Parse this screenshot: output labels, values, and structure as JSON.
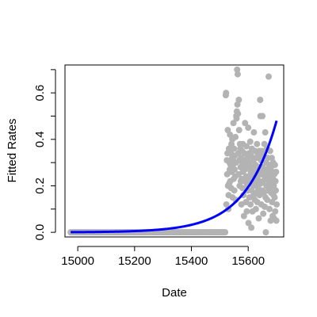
{
  "chart_data": {
    "type": "scatter",
    "title": "",
    "xlabel": "Date",
    "ylabel": "Fitted Rates",
    "xlim": [
      14955,
      15725
    ],
    "ylim": [
      -0.02,
      0.72
    ],
    "x_ticks": [
      15000,
      15200,
      15400,
      15600
    ],
    "x_tick_labels": [
      "15000",
      "15200",
      "15400",
      "15600"
    ],
    "y_ticks": [
      0.0,
      0.2,
      0.4,
      0.6
    ],
    "y_tick_labels": [
      "0.0",
      "0.2",
      "0.4",
      "0.6"
    ],
    "y_minor_ticks": [
      0.1,
      0.3,
      0.5,
      0.7
    ],
    "grid": false,
    "legend": "none",
    "zero_points": {
      "x_start": 14975,
      "x_end": 15520,
      "step": 4,
      "y": 0
    },
    "scatter_points": [
      [
        15521,
        0.59
      ],
      [
        15522,
        0.6
      ],
      [
        15523,
        0.12
      ],
      [
        15525,
        0.31
      ],
      [
        15526,
        0.25
      ],
      [
        15527,
        0.34
      ],
      [
        15528,
        0.44
      ],
      [
        15529,
        0.2
      ],
      [
        15530,
        0.1
      ],
      [
        15531,
        0.16
      ],
      [
        15532,
        0.36
      ],
      [
        15533,
        0.21
      ],
      [
        15534,
        0.3
      ],
      [
        15535,
        0.27
      ],
      [
        15536,
        0.42
      ],
      [
        15537,
        0.22
      ],
      [
        15538,
        0.29
      ],
      [
        15539,
        0.34
      ],
      [
        15540,
        0.19
      ],
      [
        15541,
        0.38
      ],
      [
        15542,
        0.26
      ],
      [
        15543,
        0.32
      ],
      [
        15544,
        0.4
      ],
      [
        15545,
        0.15
      ],
      [
        15546,
        0.28
      ],
      [
        15547,
        0.31
      ],
      [
        15548,
        0.47
      ],
      [
        15549,
        0.23
      ],
      [
        15550,
        0.36
      ],
      [
        15551,
        0.18
      ],
      [
        15552,
        0.27
      ],
      [
        15553,
        0.33
      ],
      [
        15554,
        0.24
      ],
      [
        15555,
        0.41
      ],
      [
        15556,
        0.14
      ],
      [
        15557,
        0.3
      ],
      [
        15558,
        0.5
      ],
      [
        15559,
        0.49
      ],
      [
        15560,
        0.52
      ],
      [
        15561,
        0.7
      ],
      [
        15562,
        0.55
      ],
      [
        15563,
        0.68
      ],
      [
        15564,
        0.51
      ],
      [
        15565,
        0.34
      ],
      [
        15566,
        0.25
      ],
      [
        15567,
        0.57
      ],
      [
        15568,
        0.44
      ],
      [
        15569,
        0.31
      ],
      [
        15570,
        0.2
      ],
      [
        15571,
        0.38
      ],
      [
        15572,
        0.36
      ],
      [
        15573,
        0.28
      ],
      [
        15574,
        0.22
      ],
      [
        15575,
        0.32
      ],
      [
        15576,
        0.12
      ],
      [
        15577,
        0.23
      ],
      [
        15578,
        0.35
      ],
      [
        15579,
        0.29
      ],
      [
        15580,
        0.19
      ],
      [
        15581,
        0.38
      ],
      [
        15582,
        0.26
      ],
      [
        15583,
        0.16
      ],
      [
        15584,
        0.31
      ],
      [
        15585,
        0.07
      ],
      [
        15586,
        0.22
      ],
      [
        15587,
        0.34
      ],
      [
        15588,
        0.27
      ],
      [
        15589,
        0.47
      ],
      [
        15590,
        0.19
      ],
      [
        15591,
        0.3
      ],
      [
        15592,
        0.13
      ],
      [
        15593,
        0.24
      ],
      [
        15594,
        0.37
      ],
      [
        15595,
        0.09
      ],
      [
        15596,
        0.21
      ],
      [
        15597,
        0.32
      ],
      [
        15598,
        0.18
      ],
      [
        15599,
        0.28
      ],
      [
        15600,
        0.45
      ],
      [
        15601,
        0.04
      ],
      [
        15602,
        0.24
      ],
      [
        15603,
        0.34
      ],
      [
        15604,
        0.15
      ],
      [
        15605,
        0.3
      ],
      [
        15606,
        0.22
      ],
      [
        15607,
        0.39
      ],
      [
        15608,
        0.12
      ],
      [
        15609,
        0.26
      ],
      [
        15610,
        0.33
      ],
      [
        15611,
        0.02
      ],
      [
        15612,
        0.18
      ],
      [
        15613,
        0.36
      ],
      [
        15614,
        0.25
      ],
      [
        15615,
        0.09
      ],
      [
        15616,
        0.28
      ],
      [
        15617,
        0.2
      ],
      [
        15618,
        0.31
      ],
      [
        15619,
        0.16
      ],
      [
        15620,
        0.43
      ],
      [
        15621,
        0.23
      ],
      [
        15622,
        0.27
      ],
      [
        15623,
        0.14
      ],
      [
        15624,
        0.35
      ],
      [
        15625,
        0.21
      ],
      [
        15626,
        0.29
      ],
      [
        15627,
        0.1
      ],
      [
        15628,
        0.32
      ],
      [
        15629,
        0.17
      ],
      [
        15630,
        0.26
      ],
      [
        15631,
        0.38
      ],
      [
        15632,
        0.13
      ],
      [
        15633,
        0.24
      ],
      [
        15634,
        0.33
      ],
      [
        15635,
        0.19
      ],
      [
        15636,
        0.28
      ],
      [
        15637,
        0.06
      ],
      [
        15638,
        0.22
      ],
      [
        15639,
        0.35
      ],
      [
        15640,
        0.16
      ],
      [
        15641,
        0.27
      ],
      [
        15642,
        0.57
      ],
      [
        15643,
        0.5
      ],
      [
        15644,
        0.21
      ],
      [
        15645,
        0.31
      ],
      [
        15646,
        0.12
      ],
      [
        15647,
        0.25
      ],
      [
        15648,
        0.35
      ],
      [
        15649,
        0.18
      ],
      [
        15650,
        0.5
      ],
      [
        15651,
        0.28
      ],
      [
        15652,
        0.22
      ],
      [
        15653,
        0.08
      ],
      [
        15654,
        0.33
      ],
      [
        15655,
        0.17
      ],
      [
        15656,
        0.26
      ],
      [
        15657,
        0.38
      ],
      [
        15658,
        0.11
      ],
      [
        15659,
        0.24
      ],
      [
        15660,
        0.43
      ],
      [
        15661,
        0.15
      ],
      [
        15662,
        0.0
      ],
      [
        15663,
        0.3
      ],
      [
        15664,
        0.2
      ],
      [
        15665,
        0.27
      ],
      [
        15666,
        0.36
      ],
      [
        15667,
        0.14
      ],
      [
        15668,
        0.23
      ],
      [
        15669,
        0.32
      ],
      [
        15670,
        0.18
      ],
      [
        15671,
        0.26
      ],
      [
        15672,
        0.67
      ],
      [
        15673,
        0.22
      ],
      [
        15674,
        0.29
      ],
      [
        15675,
        0.1
      ],
      [
        15676,
        0.19
      ],
      [
        15677,
        0.35
      ],
      [
        15678,
        0.24
      ],
      [
        15679,
        0.05
      ],
      [
        15680,
        0.28
      ],
      [
        15681,
        0.17
      ],
      [
        15682,
        0.21
      ],
      [
        15683,
        0.32
      ],
      [
        15684,
        0.13
      ],
      [
        15685,
        0.26
      ],
      [
        15686,
        0.07
      ],
      [
        15687,
        0.23
      ],
      [
        15688,
        0.3
      ],
      [
        15689,
        0.16
      ],
      [
        15690,
        0.2
      ],
      [
        15691,
        0.06
      ],
      [
        15692,
        0.25
      ],
      [
        15693,
        0.15
      ],
      [
        15694,
        0.29
      ],
      [
        15695,
        0.09
      ],
      [
        15696,
        0.22
      ],
      [
        15697,
        0.18
      ],
      [
        15698,
        0.26
      ],
      [
        15699,
        0.05
      ],
      [
        15700,
        0.12
      ]
    ],
    "fit_curve": {
      "type": "exponential",
      "x_start": 14975,
      "x_end": 15700,
      "y_start": 0.0007,
      "y_end": 0.48
    },
    "colors": {
      "points": "#b3b3b3",
      "curve": "#0000ff",
      "axis": "#000000"
    }
  }
}
